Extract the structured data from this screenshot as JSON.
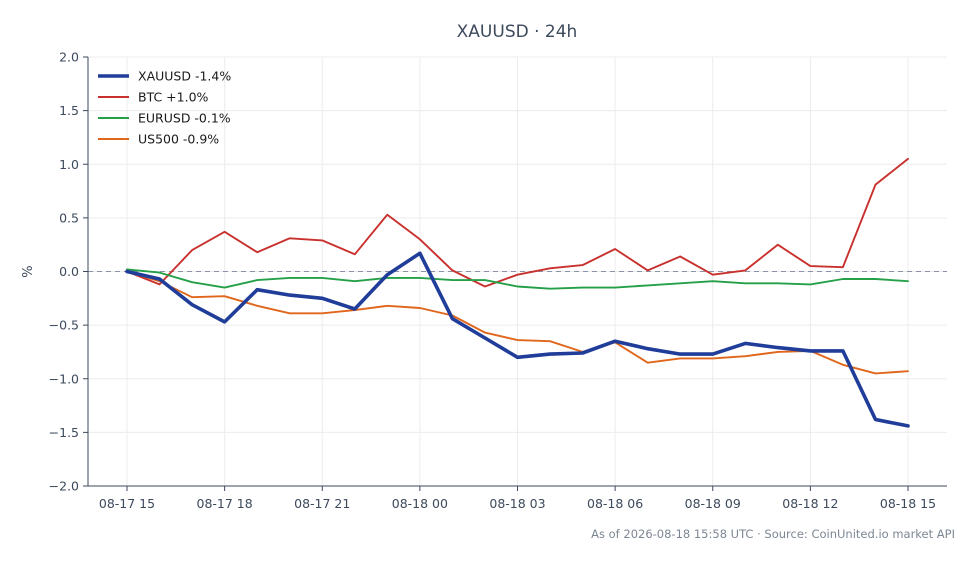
{
  "chart_data": {
    "type": "line",
    "title": "XAUUSD · 24h",
    "xlabel": "",
    "ylabel": "%",
    "ylim": [
      -2.0,
      2.0
    ],
    "yticks": [
      "2.0",
      "1.5",
      "1.0",
      "0.5",
      "0.0",
      "−0.5",
      "−1.0",
      "−1.5",
      "−2.0"
    ],
    "ytick_values": [
      2.0,
      1.5,
      1.0,
      0.5,
      0.0,
      -0.5,
      -1.0,
      -1.5,
      -2.0
    ],
    "xticks": [
      "08-17 15",
      "08-17 18",
      "08-17 21",
      "08-18 00",
      "08-18 03",
      "08-18 06",
      "08-18 09",
      "08-18 12",
      "08-18 15"
    ],
    "xtick_index": [
      0,
      3,
      6,
      9,
      12,
      15,
      18,
      21,
      24
    ],
    "grid": true,
    "zero_line": true,
    "legend_position": "top-left",
    "series": [
      {
        "name": "XAUUSD -1.4%",
        "color": "#1f3d99",
        "emphasis": true,
        "values": [
          0.0,
          -0.07,
          -0.31,
          -0.47,
          -0.17,
          -0.22,
          -0.25,
          -0.35,
          -0.03,
          0.17,
          -0.44,
          -0.62,
          -0.8,
          -0.77,
          -0.76,
          -0.65,
          -0.72,
          -0.77,
          -0.77,
          -0.67,
          -0.71,
          -0.74,
          -0.74,
          -1.38,
          -1.44
        ]
      },
      {
        "name": "BTC +1.0%",
        "color": "#c8312e",
        "values": [
          0.0,
          -0.12,
          0.2,
          0.37,
          0.18,
          0.31,
          0.29,
          0.16,
          0.53,
          0.3,
          0.01,
          -0.14,
          -0.03,
          0.03,
          0.06,
          0.21,
          0.01,
          0.14,
          -0.03,
          0.01,
          0.25,
          0.05,
          0.04,
          0.81,
          1.05
        ]
      },
      {
        "name": "EURUSD -0.1%",
        "color": "#25a048",
        "values": [
          0.02,
          -0.01,
          -0.1,
          -0.15,
          -0.08,
          -0.06,
          -0.06,
          -0.09,
          -0.06,
          -0.06,
          -0.08,
          -0.08,
          -0.14,
          -0.16,
          -0.15,
          -0.15,
          -0.13,
          -0.11,
          -0.09,
          -0.11,
          -0.11,
          -0.12,
          -0.07,
          -0.07,
          -0.09
        ]
      },
      {
        "name": "US500 -0.9%",
        "color": "#e0661c",
        "values": [
          0.0,
          -0.09,
          -0.24,
          -0.23,
          -0.32,
          -0.39,
          -0.39,
          -0.36,
          -0.32,
          -0.34,
          -0.41,
          -0.57,
          -0.64,
          -0.65,
          -0.75,
          -0.66,
          -0.85,
          -0.81,
          -0.81,
          -0.79,
          -0.75,
          -0.74,
          -0.87,
          -0.95,
          -0.93
        ]
      }
    ]
  },
  "footer": {
    "text": "As of 2026-08-18 15:58 UTC · Source: CoinUnited.io market API"
  }
}
